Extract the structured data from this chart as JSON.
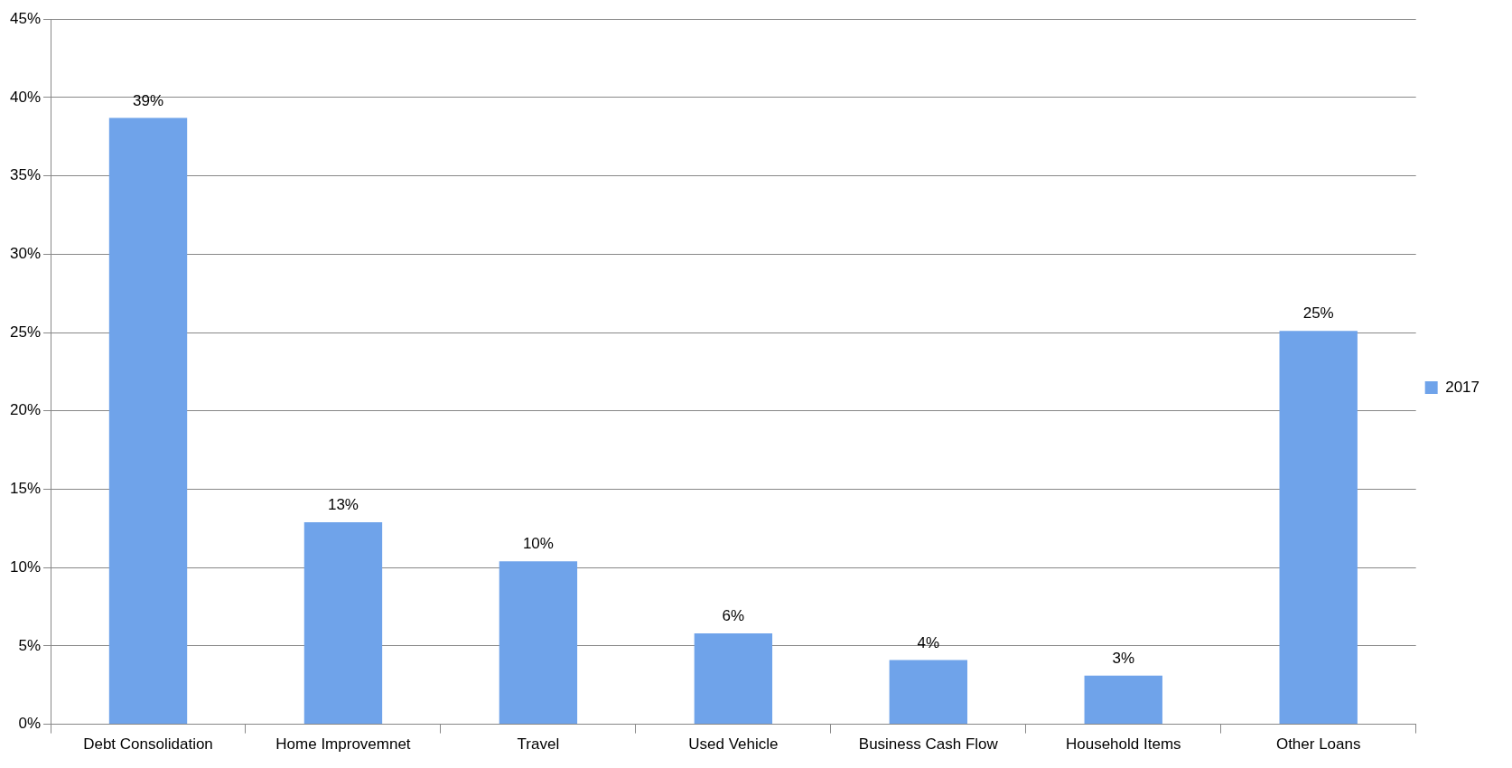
{
  "chart_data": {
    "type": "bar",
    "categories": [
      "Debt Consolidation",
      "Home Improvemnet",
      "Travel",
      "Used Vehicle",
      "Business Cash Flow",
      "Household Items",
      "Other Loans"
    ],
    "series": [
      {
        "name": "2017",
        "color": "#6fa3ea",
        "values": [
          38.7,
          12.9,
          10.4,
          5.8,
          4.1,
          3.1,
          25.1
        ],
        "value_labels": [
          "39%",
          "13%",
          "10%",
          "6%",
          "4%",
          "3%",
          "25%"
        ]
      }
    ],
    "ylim": [
      0,
      45
    ],
    "yticks": [
      {
        "value": 0,
        "label": "0%"
      },
      {
        "value": 5,
        "label": "5%"
      },
      {
        "value": 10,
        "label": "10%"
      },
      {
        "value": 15,
        "label": "15%"
      },
      {
        "value": 20,
        "label": "20%"
      },
      {
        "value": 25,
        "label": "25%"
      },
      {
        "value": 30,
        "label": "30%"
      },
      {
        "value": 35,
        "label": "35%"
      },
      {
        "value": 40,
        "label": "40%"
      },
      {
        "value": 45,
        "label": "45%"
      }
    ],
    "grid": "y",
    "legend": "right"
  }
}
